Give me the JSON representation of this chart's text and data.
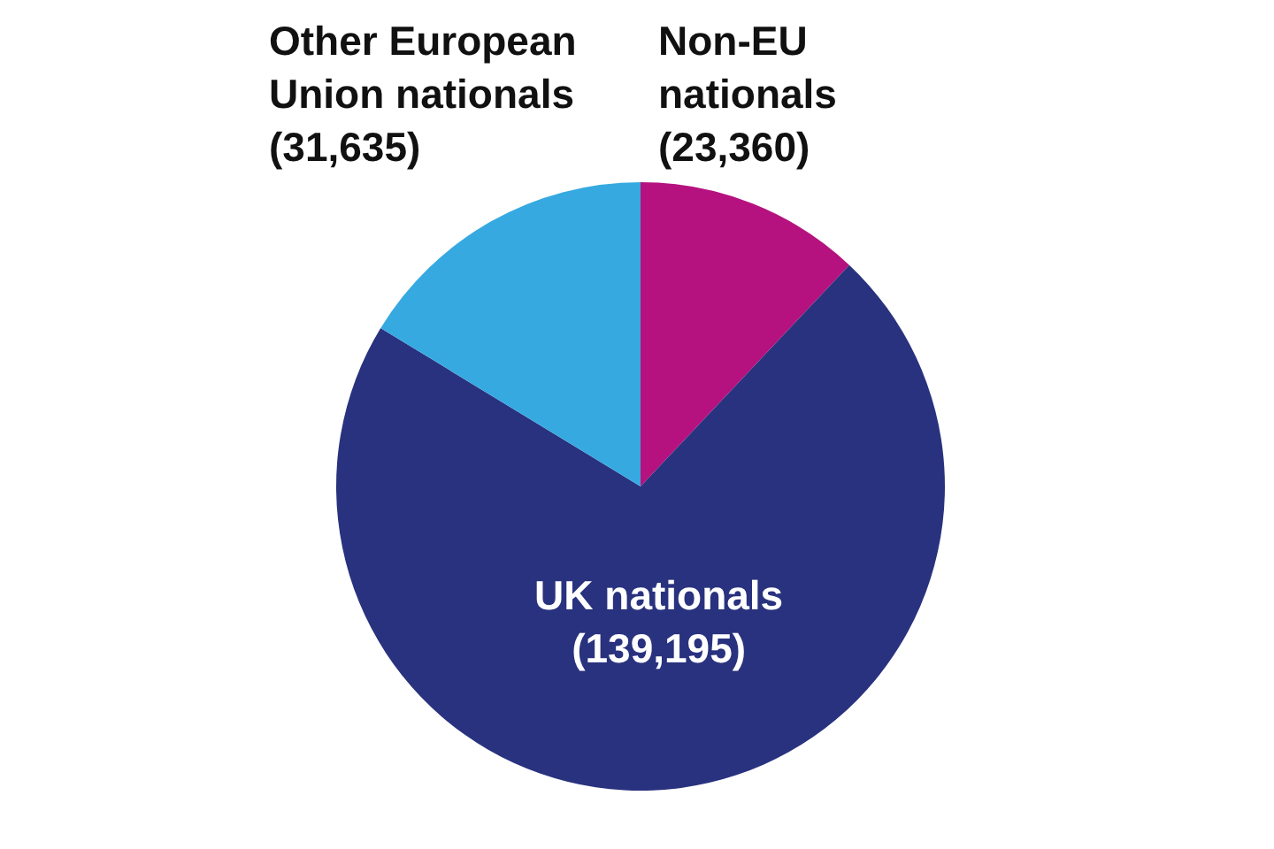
{
  "chart_data": {
    "type": "pie",
    "categories": [
      "Non-EU nationals",
      "UK nationals",
      "Other European Union nationals"
    ],
    "values": [
      23360,
      139195,
      31635
    ],
    "colors": [
      "#b5127f",
      "#29327e",
      "#36a9e1"
    ],
    "value_labels": [
      "(23,360)",
      "(139,195)",
      "(31,635)"
    ],
    "legend": false
  }
}
